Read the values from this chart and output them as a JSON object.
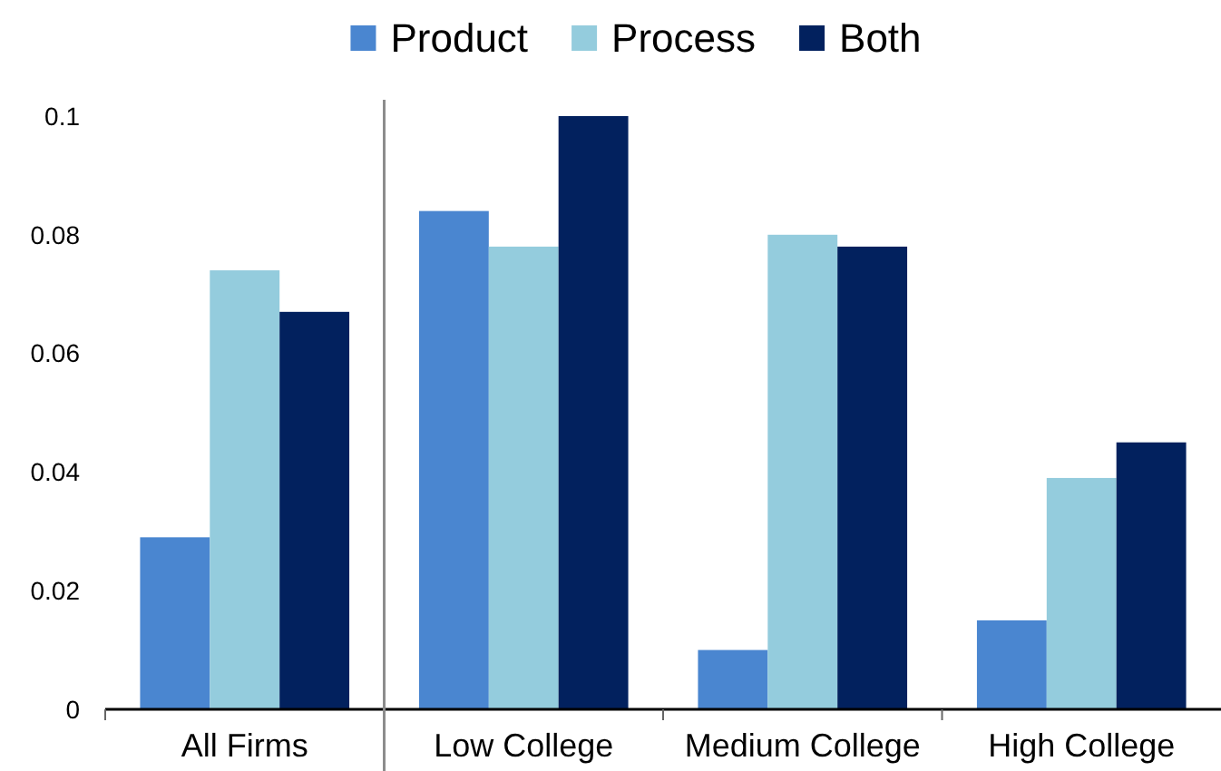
{
  "chart_data": {
    "type": "bar",
    "categories": [
      "All Firms",
      "Low College",
      "Medium College",
      "High College"
    ],
    "series": [
      {
        "name": "Product",
        "color": "#4a86d0",
        "values": [
          0.029,
          0.084,
          0.01,
          0.015
        ]
      },
      {
        "name": "Process",
        "color": "#94ccdd",
        "values": [
          0.074,
          0.078,
          0.08,
          0.039
        ]
      },
      {
        "name": "Both",
        "color": "#02215e",
        "values": [
          0.067,
          0.1,
          0.078,
          0.045
        ]
      }
    ],
    "ylim": [
      0,
      0.1
    ],
    "yticks": [
      0,
      0.02,
      0.04,
      0.06,
      0.08,
      0.1
    ],
    "legend": "top"
  }
}
